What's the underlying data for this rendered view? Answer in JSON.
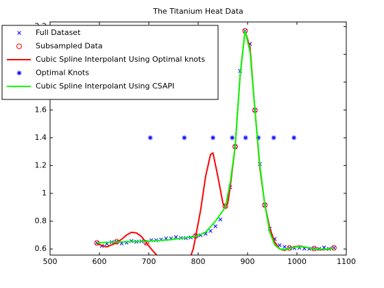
{
  "chart_data": {
    "type": "line",
    "title": "The Titanium Heat Data",
    "xlim": [
      500,
      1100
    ],
    "xticks": [
      500,
      600,
      700,
      800,
      900,
      1000,
      1100
    ],
    "ylim": [
      0.556,
      2.233
    ],
    "yticks": [
      0.6,
      0.8,
      1,
      1.2,
      1.4,
      1.6,
      1.8,
      2,
      2.2
    ],
    "legend": "upper left",
    "series": [
      {
        "name": "Full Dataset",
        "color": "#0000ff",
        "marker": "x",
        "line": false,
        "x": [
          595,
          605,
          615,
          625,
          635,
          645,
          655,
          665,
          675,
          685,
          695,
          705,
          715,
          725,
          735,
          745,
          755,
          765,
          775,
          785,
          795,
          805,
          815,
          825,
          835,
          845,
          855,
          865,
          875,
          885,
          895,
          905,
          915,
          925,
          935,
          945,
          955,
          965,
          975,
          985,
          995,
          1005,
          1015,
          1025,
          1035,
          1045,
          1055,
          1065,
          1075
        ],
        "values": [
          0.644,
          0.622,
          0.638,
          0.649,
          0.652,
          0.639,
          0.646,
          0.657,
          0.652,
          0.655,
          0.644,
          0.663,
          0.663,
          0.668,
          0.676,
          0.676,
          0.686,
          0.679,
          0.678,
          0.683,
          0.694,
          0.699,
          0.71,
          0.73,
          0.763,
          0.812,
          0.907,
          1.044,
          1.336,
          1.881,
          2.169,
          2.075,
          1.598,
          1.211,
          0.916,
          0.746,
          0.672,
          0.627,
          0.615,
          0.607,
          0.606,
          0.609,
          0.603,
          0.601,
          0.603,
          0.601,
          0.611,
          0.601,
          0.608
        ]
      },
      {
        "name": "Subsampled Data",
        "color": "#ff0000",
        "marker": "o",
        "line": false,
        "x": [
          595,
          635,
          695,
          795,
          855,
          875,
          895,
          915,
          935,
          985,
          1035,
          1075
        ],
        "values": [
          0.644,
          0.652,
          0.644,
          0.694,
          0.907,
          1.336,
          2.169,
          1.598,
          0.916,
          0.607,
          0.603,
          0.608
        ]
      },
      {
        "name": "Cubic Spline Interpolant Using Optimal knots",
        "color": "#ff0000",
        "marker": "none",
        "line": true,
        "x": [
          595,
          605,
          615,
          625,
          635,
          645,
          655,
          665,
          675,
          685,
          695,
          705,
          715,
          725,
          740,
          755,
          770,
          780,
          790,
          795,
          805,
          815,
          825,
          830,
          840,
          850,
          855,
          860,
          865,
          875,
          885,
          895,
          905,
          915,
          925,
          935,
          945,
          955,
          965,
          975,
          985,
          995,
          1005,
          1015,
          1025,
          1035,
          1045,
          1055,
          1065,
          1075
        ],
        "values": [
          0.64,
          0.625,
          0.615,
          0.63,
          0.645,
          0.67,
          0.7,
          0.72,
          0.715,
          0.69,
          0.645,
          0.6,
          0.56,
          0.52,
          0.47,
          0.44,
          0.45,
          0.5,
          0.6,
          0.69,
          0.88,
          1.12,
          1.28,
          1.29,
          1.12,
          0.93,
          0.9,
          0.93,
          1.05,
          1.34,
          1.85,
          2.17,
          2.05,
          1.6,
          1.18,
          0.92,
          0.75,
          0.65,
          0.6,
          0.59,
          0.605,
          0.615,
          0.62,
          0.615,
          0.605,
          0.6,
          0.595,
          0.595,
          0.6,
          0.605
        ]
      },
      {
        "name": "Optimal Knots",
        "color": "#0000ff",
        "marker": "*",
        "line": false,
        "x": [
          703,
          772,
          830,
          869,
          896,
          922,
          953,
          994
        ],
        "values": [
          1.4,
          1.4,
          1.4,
          1.4,
          1.4,
          1.4,
          1.4,
          1.4
        ]
      },
      {
        "name": "Cubic Spline Interpolant Using CSAPI",
        "color": "#00ff00",
        "marker": "none",
        "line": true,
        "x": [
          595,
          620,
          635,
          660,
          695,
          740,
          795,
          815,
          835,
          845,
          855,
          865,
          875,
          885,
          895,
          905,
          915,
          925,
          935,
          945,
          955,
          965,
          975,
          985,
          1000,
          1015,
          1035,
          1055,
          1075
        ],
        "values": [
          0.645,
          0.648,
          0.65,
          0.652,
          0.655,
          0.665,
          0.69,
          0.72,
          0.8,
          0.85,
          0.9,
          1.08,
          1.34,
          1.85,
          2.17,
          2.02,
          1.6,
          1.2,
          0.92,
          0.72,
          0.63,
          0.6,
          0.595,
          0.605,
          0.615,
          0.615,
          0.6,
          0.598,
          0.605
        ]
      }
    ]
  }
}
